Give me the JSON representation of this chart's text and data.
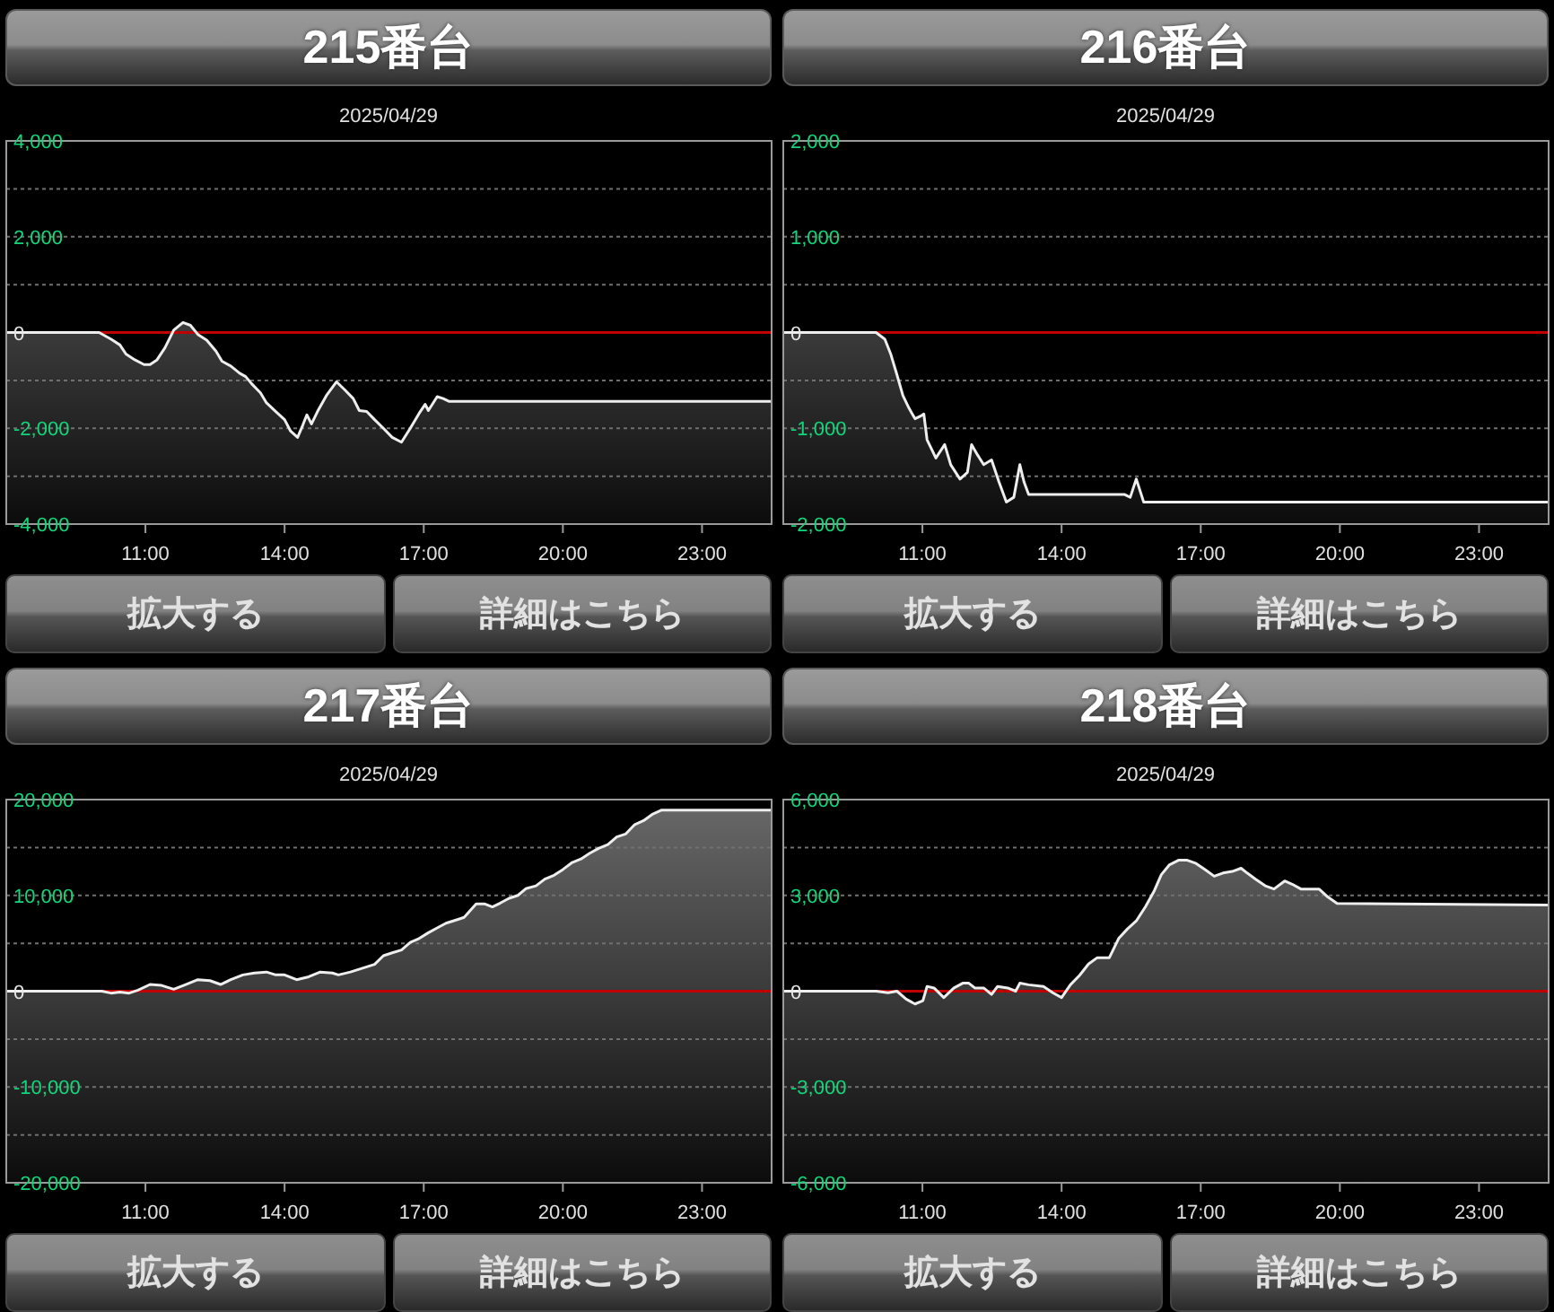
{
  "chart_data": [
    {
      "type": "line",
      "title": "215番台",
      "subtitle": "2025/04/29",
      "annotations": [
        "拡大する",
        "詳細はこちら"
      ],
      "x": [
        8,
        10,
        10.26,
        10.45,
        10.58,
        10.77,
        10.97,
        11.1,
        11.25,
        11.42,
        11.61,
        11.81,
        11.97,
        12.13,
        12.32,
        12.52,
        12.65,
        12.84,
        13.03,
        13.16,
        13.29,
        13.48,
        13.61,
        13.81,
        14,
        14.13,
        14.28,
        14.39,
        14.48,
        14.58,
        14.71,
        14.9,
        15.12,
        15.29,
        15.48,
        15.61,
        15.77,
        15.94,
        16.13,
        16.32,
        16.52,
        16.71,
        16.9,
        17.03,
        17.1,
        17.29,
        17.42,
        17.55,
        24.5
      ],
      "series": [
        {
          "color": "#eeeeee",
          "values": [
            0,
            0,
            -140,
            -260,
            -450,
            -570,
            -670,
            -670,
            -570,
            -320,
            50,
            210,
            150,
            -40,
            -160,
            -390,
            -600,
            -700,
            -850,
            -920,
            -1070,
            -1260,
            -1470,
            -1650,
            -1820,
            -2060,
            -2190,
            -1940,
            -1720,
            -1910,
            -1650,
            -1320,
            -1030,
            -1190,
            -1380,
            -1630,
            -1650,
            -1820,
            -2000,
            -2190,
            -2290,
            -2000,
            -1690,
            -1500,
            -1630,
            -1340,
            -1380,
            -1440,
            -1440
          ],
          "upper": [
            0,
            0,
            -140,
            -260,
            -450,
            -570,
            -670,
            -670,
            -570,
            -320,
            50,
            210,
            150,
            -40,
            -160,
            -390,
            -600,
            -700,
            -850,
            -920,
            -1070,
            -1260,
            -1470,
            -1650,
            -1820,
            -2060,
            -2190,
            -1940,
            -1720,
            -1910,
            -1650,
            -1320,
            -1030,
            -1190,
            -1380,
            -1630,
            -1650,
            -1820,
            -2000,
            -2190,
            -2290,
            -2000,
            -1690,
            -1500,
            -1630,
            -1340,
            -1380,
            -1440,
            -1440
          ],
          "lower": [
            -4000,
            -4000,
            -4000,
            -4000,
            -4000,
            -4000,
            -4000,
            -4000,
            -4000,
            -4000,
            -4000,
            -4000,
            -4000,
            -4000,
            -4000,
            -4000,
            -4000,
            -4000,
            -4000,
            -4000,
            -4000,
            -4000,
            -4000,
            -4000,
            -4000,
            -4000,
            -4000,
            -4000,
            -4000,
            -4000,
            -4000,
            -4000,
            -4000,
            -4000,
            -4000,
            -4000,
            -4000,
            -4000,
            -4000,
            -4000,
            -4000,
            -4000,
            -4000,
            -4000,
            -4000,
            -4000,
            -4000,
            -4000,
            -4000
          ]
        }
      ],
      "xlim": [
        8,
        24.5
      ],
      "xticks": [
        {
          "value": 11,
          "label": "11:00"
        },
        {
          "value": 14,
          "label": "14:00"
        },
        {
          "value": 17,
          "label": "17:00"
        },
        {
          "value": 20,
          "label": "20:00"
        },
        {
          "value": 23,
          "label": "23:00"
        }
      ],
      "ylim": [
        -4000,
        4000
      ],
      "yticks": [
        {
          "value": 4000,
          "label": "4,000"
        },
        {
          "value": 3000,
          "label": null
        },
        {
          "value": 2000,
          "label": "2,000"
        },
        {
          "value": 1000,
          "label": null
        },
        {
          "value": 0,
          "label": "0"
        },
        {
          "value": -1000,
          "label": null
        },
        {
          "value": -2000,
          "label": "-2,000"
        },
        {
          "value": -3000,
          "label": null
        },
        {
          "value": -4000,
          "label": "-4,000"
        }
      ],
      "grid": "y",
      "ref_lines": [
        {
          "axis": "y",
          "value": 0,
          "color": "#c00000"
        }
      ]
    },
    {
      "type": "line",
      "title": "216番台",
      "subtitle": "2025/04/29",
      "annotations": [
        "拡大する",
        "詳細はこちら"
      ],
      "x": [
        8,
        10,
        10.19,
        10.32,
        10.45,
        10.58,
        10.71,
        10.84,
        10.97,
        11.03,
        11.1,
        11.29,
        11.48,
        11.61,
        11.81,
        11.97,
        12.06,
        12.19,
        12.32,
        12.49,
        12.65,
        12.81,
        12.97,
        13.1,
        13.19,
        13.29,
        15.35,
        15.48,
        15.61,
        15.77,
        24.5
      ],
      "series": [
        {
          "color": "#eeeeee",
          "values": [
            0,
            0,
            -70,
            -230,
            -440,
            -660,
            -790,
            -900,
            -870,
            -850,
            -1120,
            -1310,
            -1170,
            -1380,
            -1530,
            -1460,
            -1170,
            -1280,
            -1380,
            -1330,
            -1560,
            -1770,
            -1720,
            -1380,
            -1560,
            -1690,
            -1690,
            -1720,
            -1530,
            -1770,
            -1770
          ],
          "upper": [
            0,
            0,
            -70,
            -230,
            -440,
            -660,
            -790,
            -900,
            -870,
            -850,
            -1120,
            -1310,
            -1170,
            -1380,
            -1530,
            -1460,
            -1170,
            -1280,
            -1380,
            -1330,
            -1560,
            -1770,
            -1720,
            -1380,
            -1560,
            -1690,
            -1690,
            -1720,
            -1530,
            -1770,
            -1770
          ],
          "lower": [
            -2000,
            -2000,
            -2000,
            -2000,
            -2000,
            -2000,
            -2000,
            -2000,
            -2000,
            -2000,
            -2000,
            -2000,
            -2000,
            -2000,
            -2000,
            -2000,
            -2000,
            -2000,
            -2000,
            -2000,
            -2000,
            -2000,
            -2000,
            -2000,
            -2000,
            -2000,
            -2000,
            -2000,
            -2000,
            -2000,
            -2000
          ]
        }
      ],
      "xlim": [
        8,
        24.5
      ],
      "xticks": [
        {
          "value": 11,
          "label": "11:00"
        },
        {
          "value": 14,
          "label": "14:00"
        },
        {
          "value": 17,
          "label": "17:00"
        },
        {
          "value": 20,
          "label": "20:00"
        },
        {
          "value": 23,
          "label": "23:00"
        }
      ],
      "ylim": [
        -2000,
        2000
      ],
      "yticks": [
        {
          "value": 2000,
          "label": "2,000"
        },
        {
          "value": 1500,
          "label": null
        },
        {
          "value": 1000,
          "label": "1,000"
        },
        {
          "value": 500,
          "label": null
        },
        {
          "value": 0,
          "label": "0"
        },
        {
          "value": -500,
          "label": null
        },
        {
          "value": -1000,
          "label": "-1,000"
        },
        {
          "value": -1500,
          "label": null
        },
        {
          "value": -2000,
          "label": "-2,000"
        }
      ],
      "grid": "y",
      "ref_lines": [
        {
          "axis": "y",
          "value": 0,
          "color": "#c00000"
        }
      ]
    },
    {
      "type": "line",
      "title": "217番台",
      "subtitle": "2025/04/29",
      "annotations": [
        "拡大する",
        "詳細はこちら"
      ],
      "x": [
        8,
        10.06,
        10.26,
        10.45,
        10.65,
        10.84,
        11.1,
        11.35,
        11.61,
        11.87,
        12.13,
        12.39,
        12.62,
        12.84,
        13.1,
        13.35,
        13.61,
        13.81,
        14,
        14.26,
        14.52,
        14.77,
        15.03,
        15.16,
        15.42,
        15.68,
        15.94,
        16.13,
        16.32,
        16.52,
        16.71,
        16.9,
        17.1,
        17.29,
        17.48,
        17.68,
        17.87,
        18,
        18.13,
        18.32,
        18.48,
        18.65,
        18.84,
        19.03,
        19.2,
        19.42,
        19.61,
        19.81,
        20,
        20.19,
        20.39,
        20.58,
        20.77,
        20.97,
        21.16,
        21.35,
        21.55,
        21.74,
        21.94,
        22.13,
        24.5
      ],
      "series": [
        {
          "color": "#eeeeee",
          "values": [
            0,
            0,
            -200,
            -100,
            -200,
            100,
            700,
            600,
            200,
            700,
            1200,
            1100,
            700,
            1200,
            1700,
            1900,
            2000,
            1700,
            1700,
            1200,
            1500,
            2000,
            1900,
            1700,
            2000,
            2400,
            2800,
            3700,
            4000,
            4300,
            5100,
            5500,
            6100,
            6600,
            7100,
            7400,
            7700,
            8400,
            9100,
            9100,
            8800,
            9200,
            9700,
            10000,
            10700,
            11000,
            11700,
            12100,
            12700,
            13400,
            13800,
            14400,
            14900,
            15300,
            16100,
            16400,
            17400,
            17800,
            18500,
            18900,
            18900
          ],
          "upper": [
            0,
            0,
            -200,
            -100,
            -200,
            100,
            700,
            600,
            200,
            700,
            1200,
            1100,
            700,
            1200,
            1700,
            1900,
            2000,
            1700,
            1700,
            1200,
            1500,
            2000,
            1900,
            1700,
            2000,
            2400,
            2800,
            3700,
            4000,
            4300,
            5100,
            5500,
            6100,
            6600,
            7100,
            7400,
            7700,
            8400,
            9100,
            9100,
            8800,
            9200,
            9700,
            10000,
            10700,
            11000,
            11700,
            12100,
            12700,
            13400,
            13800,
            14400,
            14900,
            15300,
            16100,
            16400,
            17400,
            17800,
            18500,
            18900,
            18900
          ],
          "lower": [
            -20000,
            -20000,
            -20000,
            -20000,
            -20000,
            -20000,
            -20000,
            -20000,
            -20000,
            -20000,
            -20000,
            -20000,
            -20000,
            -20000,
            -20000,
            -20000,
            -20000,
            -20000,
            -20000,
            -20000,
            -20000,
            -20000,
            -20000,
            -20000,
            -20000,
            -20000,
            -20000,
            -20000,
            -20000,
            -20000,
            -20000,
            -20000,
            -20000,
            -20000,
            -20000,
            -20000,
            -20000,
            -20000,
            -20000,
            -20000,
            -20000,
            -20000,
            -20000,
            -20000,
            -20000,
            -20000,
            -20000,
            -20000,
            -20000,
            -20000,
            -20000,
            -20000,
            -20000,
            -20000,
            -20000,
            -20000,
            -20000,
            -20000,
            -20000,
            -20000,
            -20000
          ]
        }
      ],
      "xlim": [
        8,
        24.5
      ],
      "xticks": [
        {
          "value": 11,
          "label": "11:00"
        },
        {
          "value": 14,
          "label": "14:00"
        },
        {
          "value": 17,
          "label": "17:00"
        },
        {
          "value": 20,
          "label": "20:00"
        },
        {
          "value": 23,
          "label": "23:00"
        }
      ],
      "ylim": [
        -20000,
        20000
      ],
      "yticks": [
        {
          "value": 20000,
          "label": "20,000"
        },
        {
          "value": 15000,
          "label": null
        },
        {
          "value": 10000,
          "label": "10,000"
        },
        {
          "value": 5000,
          "label": null
        },
        {
          "value": 0,
          "label": "0"
        },
        {
          "value": -5000,
          "label": null
        },
        {
          "value": -10000,
          "label": "-10,000"
        },
        {
          "value": -15000,
          "label": null
        },
        {
          "value": -20000,
          "label": "-20,000"
        }
      ],
      "grid": "y",
      "ref_lines": [
        {
          "axis": "y",
          "value": 0,
          "color": "#c00000"
        }
      ]
    },
    {
      "type": "line",
      "title": "218番台",
      "subtitle": "2025/04/29",
      "annotations": [
        "拡大する",
        "詳細はこちら"
      ],
      "x": [
        8,
        10,
        10.26,
        10.45,
        10.65,
        10.84,
        11.01,
        11.1,
        11.25,
        11.46,
        11.68,
        11.87,
        12,
        12.13,
        12.32,
        12.49,
        12.62,
        12.84,
        13.01,
        13.1,
        13.29,
        13.61,
        13.81,
        14,
        14.19,
        14.39,
        14.58,
        14.77,
        15.03,
        15.23,
        15.42,
        15.61,
        15.81,
        16,
        16.15,
        16.32,
        16.52,
        16.71,
        16.9,
        17.1,
        17.29,
        17.48,
        17.68,
        17.87,
        18,
        18.19,
        18.39,
        18.58,
        18.81,
        18.97,
        19.16,
        19.55,
        19.74,
        19.94,
        24.5
      ],
      "series": [
        {
          "color": "#eeeeee",
          "values": [
            0,
            0,
            -50,
            0,
            -250,
            -400,
            -300,
            150,
            100,
            -200,
            100,
            250,
            250,
            100,
            100,
            -100,
            150,
            100,
            0,
            250,
            200,
            150,
            -50,
            -200,
            200,
            500,
            850,
            1050,
            1050,
            1650,
            1950,
            2200,
            2650,
            3150,
            3650,
            3950,
            4100,
            4100,
            4000,
            3800,
            3600,
            3700,
            3750,
            3850,
            3700,
            3500,
            3300,
            3200,
            3450,
            3350,
            3200,
            3200,
            2950,
            2750,
            2700
          ],
          "upper": [
            0,
            0,
            -50,
            0,
            -250,
            -400,
            -300,
            150,
            100,
            -200,
            100,
            250,
            250,
            100,
            100,
            -100,
            150,
            100,
            0,
            250,
            200,
            150,
            -50,
            -200,
            200,
            500,
            850,
            1050,
            1050,
            1650,
            1950,
            2200,
            2650,
            3150,
            3650,
            3950,
            4100,
            4100,
            4000,
            3800,
            3600,
            3700,
            3750,
            3850,
            3700,
            3500,
            3300,
            3200,
            3450,
            3350,
            3200,
            3200,
            2950,
            2750,
            2700
          ],
          "lower": [
            -6000,
            -6000,
            -6000,
            -6000,
            -6000,
            -6000,
            -6000,
            -6000,
            -6000,
            -6000,
            -6000,
            -6000,
            -6000,
            -6000,
            -6000,
            -6000,
            -6000,
            -6000,
            -6000,
            -6000,
            -6000,
            -6000,
            -6000,
            -6000,
            -6000,
            -6000,
            -6000,
            -6000,
            -6000,
            -6000,
            -6000,
            -6000,
            -6000,
            -6000,
            -6000,
            -6000,
            -6000,
            -6000,
            -6000,
            -6000,
            -6000,
            -6000,
            -6000,
            -6000,
            -6000,
            -6000,
            -6000,
            -6000,
            -6000,
            -6000,
            -6000,
            -6000,
            -6000,
            -6000,
            -6000
          ]
        }
      ],
      "xlim": [
        8,
        24.5
      ],
      "xticks": [
        {
          "value": 11,
          "label": "11:00"
        },
        {
          "value": 14,
          "label": "14:00"
        },
        {
          "value": 17,
          "label": "17:00"
        },
        {
          "value": 20,
          "label": "20:00"
        },
        {
          "value": 23,
          "label": "23:00"
        }
      ],
      "ylim": [
        -6000,
        6000
      ],
      "yticks": [
        {
          "value": 6000,
          "label": "6,000"
        },
        {
          "value": 4500,
          "label": null
        },
        {
          "value": 3000,
          "label": "3,000"
        },
        {
          "value": 1500,
          "label": null
        },
        {
          "value": 0,
          "label": "0"
        },
        {
          "value": -1500,
          "label": null
        },
        {
          "value": -3000,
          "label": "-3,000"
        },
        {
          "value": -4500,
          "label": null
        },
        {
          "value": -6000,
          "label": "-6,000"
        }
      ],
      "grid": "y",
      "ref_lines": [
        {
          "axis": "y",
          "value": 0,
          "color": "#c00000"
        }
      ]
    }
  ]
}
